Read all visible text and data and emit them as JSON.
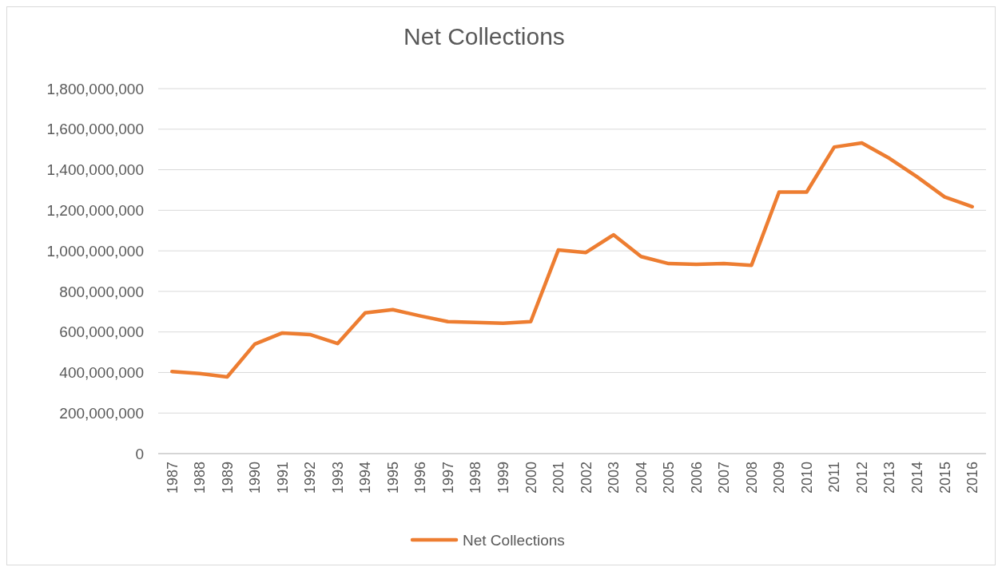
{
  "chart_data": {
    "type": "line",
    "title": "Net Collections",
    "categories": [
      "1987",
      "1988",
      "1989",
      "1990",
      "1991",
      "1992",
      "1993",
      "1994",
      "1995",
      "1996",
      "1997",
      "1998",
      "1999",
      "2000",
      "2001",
      "2002",
      "2003",
      "2004",
      "2005",
      "2006",
      "2007",
      "2008",
      "2009",
      "2010",
      "2011",
      "2012",
      "2013",
      "2014",
      "2015",
      "2016"
    ],
    "series": [
      {
        "name": "Net Collections",
        "color": "#ed7d31",
        "values": [
          405000000,
          395000000,
          378000000,
          540000000,
          595000000,
          587000000,
          543000000,
          694000000,
          710000000,
          679000000,
          651000000,
          647000000,
          643000000,
          651000000,
          1004000000,
          992000000,
          1079000000,
          972000000,
          937000000,
          933000000,
          937000000,
          929000000,
          1290000000,
          1290000000,
          1512000000,
          1532000000,
          1456000000,
          1365000000,
          1266000000,
          1218000000
        ]
      }
    ],
    "ylim": [
      0,
      1800000000
    ],
    "yticks": [
      {
        "value": 0,
        "label": "0"
      },
      {
        "value": 200000000,
        "label": "200,000,000"
      },
      {
        "value": 400000000,
        "label": "400,000,000"
      },
      {
        "value": 600000000,
        "label": "600,000,000"
      },
      {
        "value": 800000000,
        "label": "800,000,000"
      },
      {
        "value": 1000000000,
        "label": "1,000,000,000"
      },
      {
        "value": 1200000000,
        "label": "1,200,000,000"
      },
      {
        "value": 1400000000,
        "label": "1,400,000,000"
      },
      {
        "value": 1600000000,
        "label": "1,600,000,000"
      },
      {
        "value": 1800000000,
        "label": "1,800,000,000"
      }
    ],
    "grid": "y",
    "legend": "bottom",
    "line_style": "solid",
    "marker": "none"
  }
}
